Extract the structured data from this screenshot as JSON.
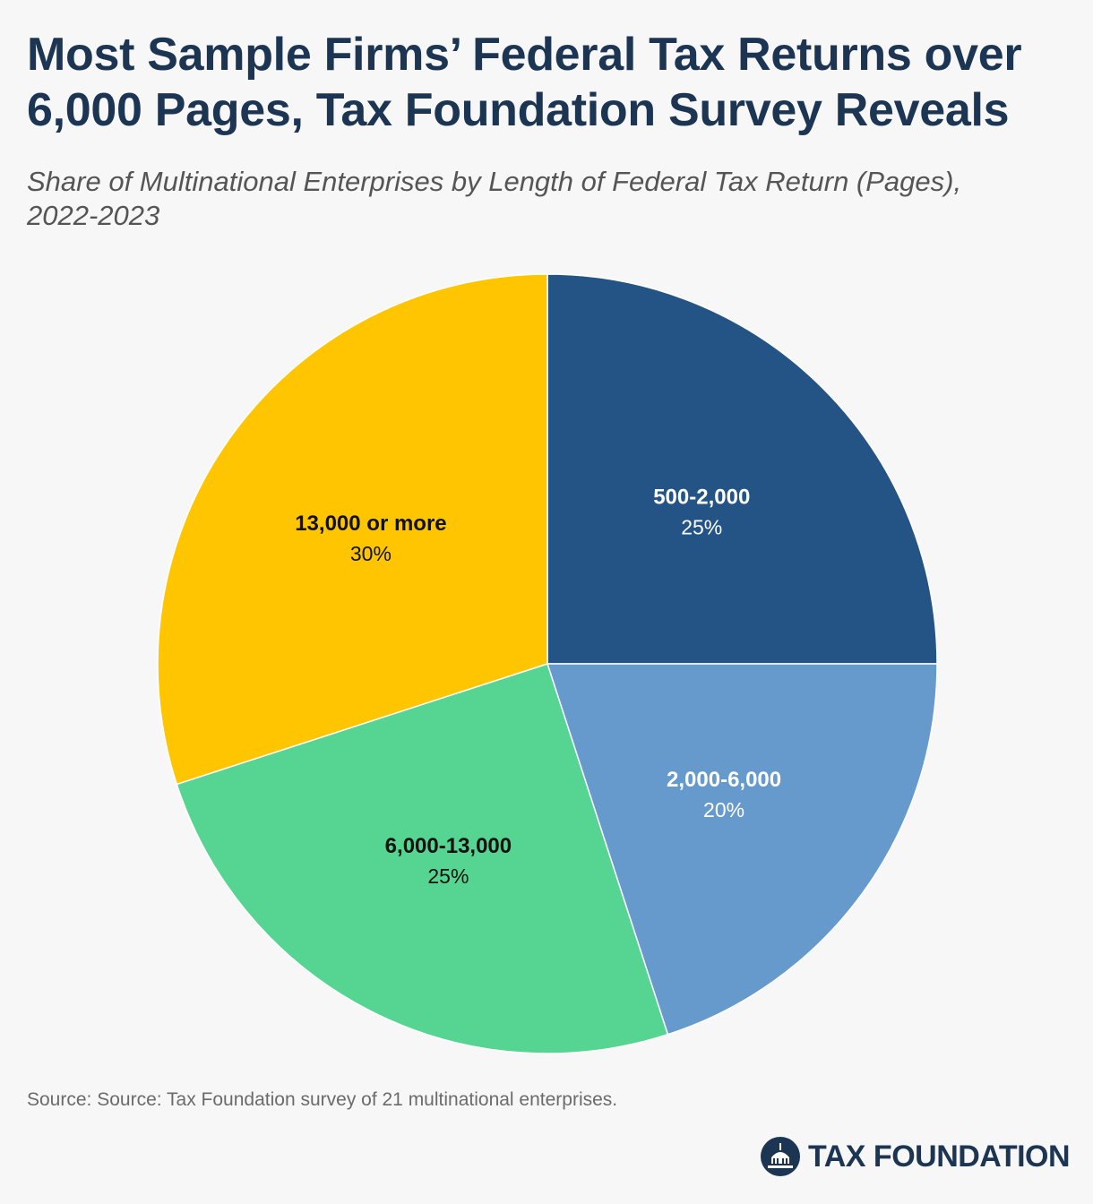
{
  "title": "Most Sample Firms’ Federal Tax Returns over 6,000 Pages, Tax Foundation Survey Reveals",
  "subtitle": "Share of Multinational Enterprises by Length of Federal Tax Return (Pages), 2022-2023",
  "source": "Source: Source: Tax Foundation survey of 21 multinational enterprises.",
  "brand": {
    "name": "TAX FOUNDATION",
    "logo_icon": "capitol-dome-icon"
  },
  "chart_data": {
    "type": "pie",
    "start": "12 o'clock, clockwise",
    "slices": [
      {
        "label": "500-2,000",
        "value": 25,
        "display": "25%",
        "color": "#245485",
        "text_color": "#ffffff"
      },
      {
        "label": "2,000-6,000",
        "value": 20,
        "display": "20%",
        "color": "#6699cc",
        "text_color": "#ffffff"
      },
      {
        "label": "6,000-13,000",
        "value": 25,
        "display": "25%",
        "color": "#56d492",
        "text_color": "#111111"
      },
      {
        "label": "13,000 or more",
        "value": 30,
        "display": "30%",
        "color": "#ffc600",
        "text_color": "#111111"
      }
    ]
  }
}
